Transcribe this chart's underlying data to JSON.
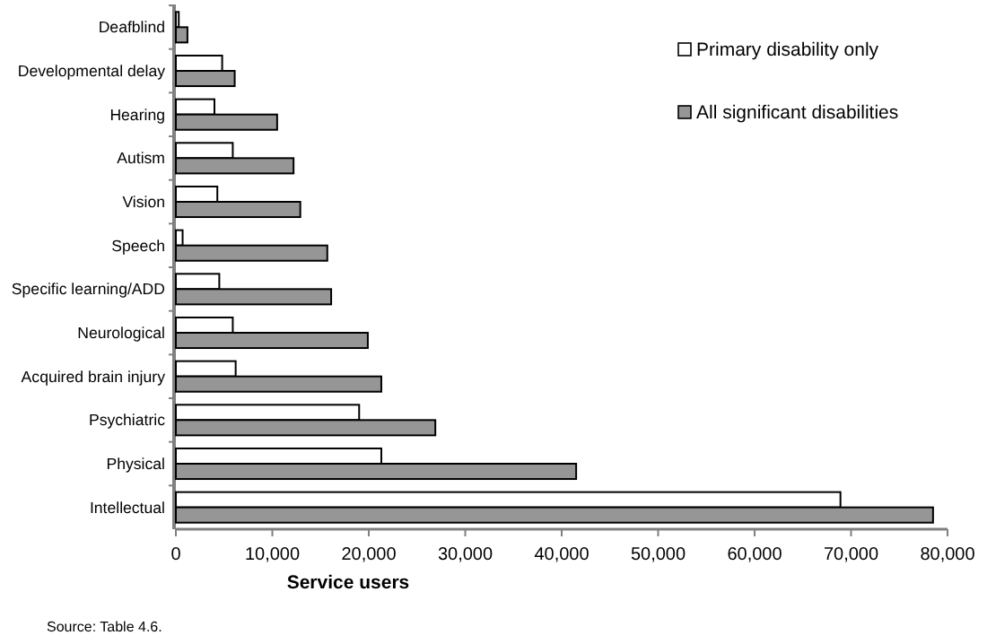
{
  "chart_data": {
    "type": "bar",
    "orientation": "horizontal",
    "xlabel": "Service users",
    "annotations": [
      "Source: Table 4.6."
    ],
    "categories": [
      "Deafblind",
      "Developmental delay",
      "Hearing",
      "Autism",
      "Vision",
      "Speech",
      "Specific learning/ADD",
      "Neurological",
      "Acquired brain injury",
      "Psychiatric",
      "Physical",
      "Intellectual"
    ],
    "series": [
      {
        "name": "Primary disability only",
        "color": "#ffffff",
        "values": [
          300,
          4800,
          4000,
          5900,
          4300,
          700,
          4500,
          5900,
          6200,
          19000,
          21300,
          68900
        ]
      },
      {
        "name": "All significant disabilities",
        "color": "#969696",
        "values": [
          1200,
          6100,
          10500,
          12200,
          12900,
          15700,
          16100,
          19900,
          21300,
          26900,
          41500,
          78500
        ]
      }
    ],
    "xlim": [
      0,
      80000
    ],
    "xticks": [
      {
        "value": 0,
        "label": "0"
      },
      {
        "value": 10000,
        "label": "10,000"
      },
      {
        "value": 20000,
        "label": "20,000"
      },
      {
        "value": 30000,
        "label": "30,000"
      },
      {
        "value": 40000,
        "label": "40,000"
      },
      {
        "value": 50000,
        "label": "50,000"
      },
      {
        "value": 60000,
        "label": "60,000"
      },
      {
        "value": 70000,
        "label": "70,000"
      },
      {
        "value": 80000,
        "label": "80,000"
      }
    ],
    "legend": "top right",
    "grid": false
  }
}
